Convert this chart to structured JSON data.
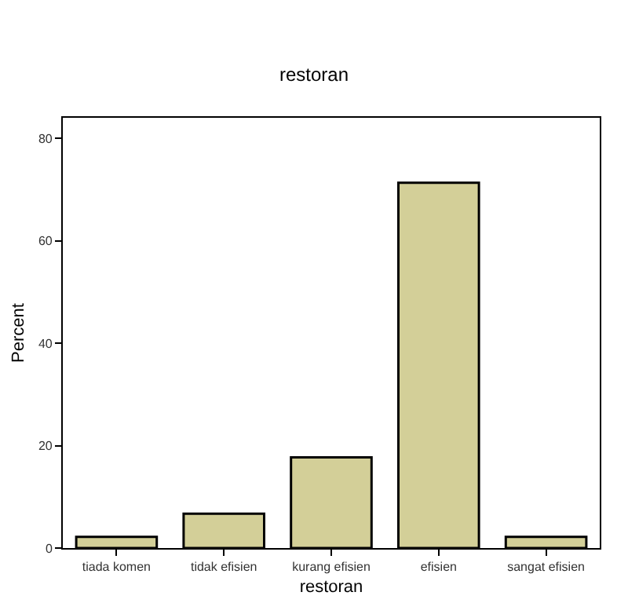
{
  "chart_data": {
    "type": "bar",
    "title": "restoran",
    "xlabel": "restoran",
    "ylabel": "Percent",
    "categories": [
      "tiada komen",
      "tidak efisien",
      "kurang efisien",
      "efisien",
      "sangat efisien"
    ],
    "values": [
      2.2,
      6.7,
      17.7,
      71.3,
      2.2
    ],
    "color": "#d3cf98",
    "ylim": [
      0,
      84
    ],
    "yticks": [
      0,
      20,
      40,
      60,
      80
    ]
  }
}
